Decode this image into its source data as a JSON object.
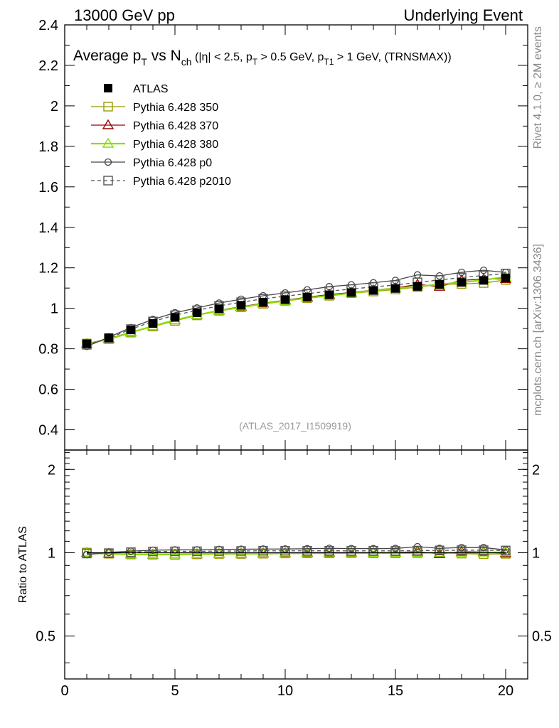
{
  "header": {
    "left": "13000 GeV pp",
    "right": "Underlying Event"
  },
  "side_labels": {
    "top": "Rivet 4.1.0, ≥ 2M events",
    "bottom": "mcplots.cern.ch [arXiv:1306.3436]"
  },
  "watermark": "(ATLAS_2017_I1509919)",
  "chart_data": [
    {
      "type": "line",
      "panel": "main",
      "title_parts": {
        "a": "Average p",
        "a_sub": "T",
        "b": " vs N",
        "b_sub": "ch",
        "c": " (|η| < 2.5, p",
        "c_sub": "T",
        "d": " > 0.5 GeV, p",
        "d_sub": "T1",
        "e": " > 1 GeV, (TRNSMAX))"
      },
      "xlabel": "",
      "ylabel": "",
      "xlim": [
        0,
        21
      ],
      "ylim": [
        0.3,
        2.4
      ],
      "yticks": [
        "0.4",
        "0.6",
        "0.8",
        "1",
        "1.2",
        "1.4",
        "1.6",
        "1.8",
        "2",
        "2.2",
        "2.4"
      ],
      "x": [
        1,
        2,
        3,
        4,
        5,
        6,
        7,
        8,
        9,
        10,
        11,
        12,
        13,
        14,
        15,
        16,
        17,
        18,
        19,
        20
      ],
      "series": [
        {
          "name": "ATLAS",
          "color": "#000000",
          "marker": "filled-square",
          "line": "none",
          "values": [
            0.825,
            0.855,
            0.893,
            0.925,
            0.955,
            0.978,
            0.998,
            1.015,
            1.03,
            1.043,
            1.055,
            1.067,
            1.078,
            1.088,
            1.098,
            1.108,
            1.118,
            1.128,
            1.138,
            1.15
          ]
        },
        {
          "name": "Pythia 6.428 350",
          "color": "#999900",
          "marker": "open-square",
          "line": "solid",
          "values": [
            0.826,
            0.848,
            0.88,
            0.91,
            0.938,
            0.965,
            0.988,
            1.005,
            1.022,
            1.037,
            1.05,
            1.062,
            1.075,
            1.083,
            1.093,
            1.105,
            1.118,
            1.12,
            1.125,
            1.14
          ]
        },
        {
          "name": "Pythia 6.428 370",
          "color": "#990000",
          "marker": "open-triangle",
          "line": "solid",
          "values": [
            0.825,
            0.85,
            0.882,
            0.912,
            0.942,
            0.967,
            0.99,
            1.008,
            1.025,
            1.04,
            1.055,
            1.068,
            1.078,
            1.09,
            1.1,
            1.118,
            1.107,
            1.138,
            1.145,
            1.145
          ]
        },
        {
          "name": "Pythia 6.428 380",
          "color": "#88dd00",
          "marker": "open-triangle",
          "line": "solid",
          "values": [
            0.824,
            0.847,
            0.88,
            0.912,
            0.942,
            0.967,
            0.988,
            1.005,
            1.022,
            1.037,
            1.051,
            1.063,
            1.075,
            1.088,
            1.098,
            1.108,
            1.118,
            1.128,
            1.14,
            1.155
          ]
        },
        {
          "name": "Pythia 6.428 p0",
          "color": "#444444",
          "marker": "open-circle",
          "line": "solid",
          "values": [
            0.812,
            0.857,
            0.905,
            0.945,
            0.978,
            1.002,
            1.026,
            1.045,
            1.062,
            1.076,
            1.091,
            1.107,
            1.116,
            1.126,
            1.138,
            1.165,
            1.16,
            1.178,
            1.188,
            1.177
          ]
        },
        {
          "name": "Pythia 6.428 p2010",
          "color": "#555555",
          "marker": "open-square",
          "line": "dashed",
          "values": [
            0.82,
            0.852,
            0.897,
            0.935,
            0.966,
            0.99,
            1.012,
            1.03,
            1.047,
            1.06,
            1.072,
            1.085,
            1.095,
            1.106,
            1.115,
            1.128,
            1.14,
            1.152,
            1.162,
            1.172
          ]
        }
      ]
    },
    {
      "type": "line",
      "panel": "ratio",
      "xlabel": "",
      "ylabel": "Ratio to ATLAS",
      "xlim": [
        0,
        21
      ],
      "ylim": [
        0.35,
        2.35
      ],
      "yticks": [
        "0.5",
        "1",
        "2"
      ],
      "xticks": [
        "0",
        "5",
        "10",
        "15",
        "20"
      ]
    }
  ]
}
